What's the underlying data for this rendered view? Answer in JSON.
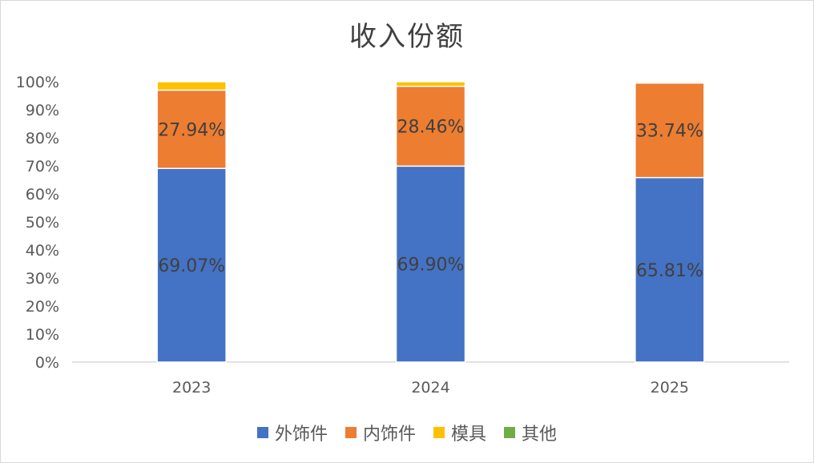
{
  "chart_data": {
    "type": "bar",
    "stacked": true,
    "title": "收入份额",
    "categories": [
      "2023",
      "2024",
      "2025"
    ],
    "series": [
      {
        "name": "外饰件",
        "color": "#4472c4",
        "values": [
          69.07,
          69.9,
          65.81
        ],
        "labels": [
          "69.07%",
          "69.90%",
          "65.81%"
        ]
      },
      {
        "name": "内饰件",
        "color": "#ed7d31",
        "values": [
          27.94,
          28.46,
          33.74
        ],
        "labels": [
          "27.94%",
          "28.46%",
          "33.74%"
        ]
      },
      {
        "name": "模具",
        "color": "#ffc000",
        "values": [
          2.99,
          1.64,
          0.45
        ]
      },
      {
        "name": "其他",
        "color": "#70ad47",
        "values": [
          0,
          0,
          0
        ]
      }
    ],
    "yaxis": {
      "min": 0,
      "max": 100,
      "step": 10,
      "ticks": [
        "0%",
        "10%",
        "20%",
        "30%",
        "40%",
        "50%",
        "60%",
        "70%",
        "80%",
        "90%",
        "100%"
      ]
    },
    "legend_position": "bottom",
    "grid": false
  }
}
